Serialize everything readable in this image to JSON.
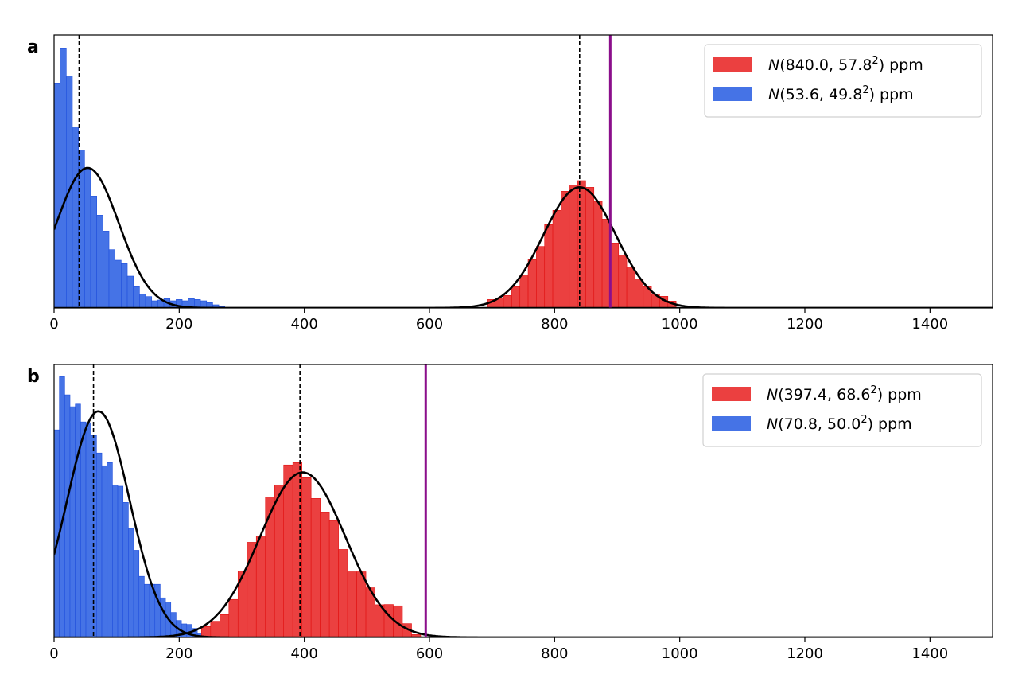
{
  "chart_data": [
    {
      "panel_label": "a",
      "type": "bar",
      "xlim": [
        0,
        1500
      ],
      "ylim": [
        0,
        1029
      ],
      "x_ticks": [
        0,
        200,
        400,
        600,
        800,
        1000,
        1200,
        1400
      ],
      "x_tick_labels": [
        "0",
        "200",
        "400",
        "600",
        "800",
        "1000",
        "1200",
        "1400"
      ],
      "y_ticks_visible": false,
      "legend_position": "top-right",
      "series": [
        {
          "name": "blue",
          "color": "#4573e6",
          "edge_color": "#1f4fdc",
          "bin_start": 0,
          "bin_width": 9.75,
          "values": [
            848,
            980,
            875,
            683,
            596,
            528,
            422,
            350,
            290,
            220,
            180,
            167,
            120,
            80,
            53,
            43,
            27,
            30,
            35,
            27,
            32,
            27,
            35,
            32,
            27,
            20,
            12,
            5
          ],
          "fit": {
            "mean": 53.6,
            "sd": 49.8,
            "peak": 528
          },
          "dashed_line_x": 40,
          "legend": {
            "dist": "N",
            "mean": "53.6",
            "sd": "49.8",
            "exp": "2",
            "unit": "ppm"
          }
        },
        {
          "name": "red",
          "color": "#eb4040",
          "edge_color": "#e01010",
          "bin_start": 692,
          "bin_width": 13.14,
          "values": [
            32,
            38,
            47,
            80,
            125,
            182,
            232,
            314,
            368,
            440,
            464,
            480,
            455,
            402,
            335,
            245,
            200,
            155,
            110,
            80,
            53,
            44,
            26
          ],
          "fit": {
            "mean": 840.0,
            "sd": 57.8,
            "peak": 455
          },
          "dashed_line_x": 840,
          "legend": {
            "dist": "N",
            "mean": "840.0",
            "sd": "57.8",
            "exp": "2",
            "unit": "ppm"
          }
        }
      ],
      "purple_line_x": 889,
      "purple_color": "#8b0e8b"
    },
    {
      "panel_label": "b",
      "type": "bar",
      "xlim": [
        0,
        1500
      ],
      "ylim": [
        0,
        1027
      ],
      "x_ticks": [
        0,
        200,
        400,
        600,
        800,
        1000,
        1200,
        1400
      ],
      "x_tick_labels": [
        "0",
        "200",
        "400",
        "600",
        "800",
        "1000",
        "1200",
        "1400"
      ],
      "y_ticks_visible": false,
      "legend_position": "top-right",
      "series": [
        {
          "name": "blue",
          "color": "#4573e6",
          "edge_color": "#1f4fdc",
          "bin_start": 0,
          "bin_width": 8.48,
          "values": [
            781,
            981,
            913,
            868,
            878,
            811,
            808,
            760,
            694,
            646,
            658,
            574,
            569,
            508,
            409,
            328,
            230,
            200,
            200,
            200,
            149,
            133,
            94,
            64,
            51,
            49,
            34,
            16
          ],
          "fit": {
            "mean": 70.8,
            "sd": 50.0,
            "peak": 851
          },
          "dashed_line_x": 63,
          "legend": {
            "dist": "N",
            "mean": "70.8",
            "sd": "50.0",
            "exp": "2",
            "unit": "ppm"
          }
        },
        {
          "name": "red",
          "color": "#eb4040",
          "edge_color": "#e01010",
          "bin_start": 235.6,
          "bin_width": 14.6,
          "values": [
            41,
            61,
            86,
            143,
            250,
            358,
            382,
            529,
            574,
            649,
            658,
            601,
            523,
            472,
            439,
            331,
            247,
            247,
            187,
            123,
            124,
            119,
            52,
            11
          ],
          "fit": {
            "mean": 397.4,
            "sd": 68.6,
            "peak": 621
          },
          "dashed_line_x": 393,
          "legend": {
            "dist": "N",
            "mean": "397.4",
            "sd": "68.6",
            "exp": "2",
            "unit": "ppm"
          }
        }
      ],
      "purple_line_x": 594,
      "purple_color": "#8b0e8b"
    }
  ]
}
